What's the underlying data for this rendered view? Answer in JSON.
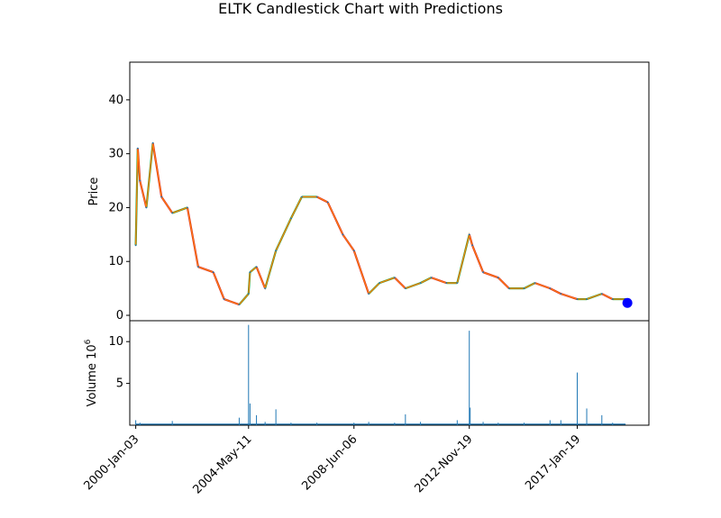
{
  "chart_data": [
    {
      "type": "candlestick",
      "title": "ELTK Candlestick Chart with Predictions",
      "ylabel": "Price",
      "ylim": [
        -1,
        47
      ],
      "yticks": [
        0,
        10,
        20,
        30,
        40
      ],
      "x_tick_labels": [
        "2000-Jan-03",
        "2004-May-11",
        "2008-Jun-06",
        "2012-Nov-19",
        "2017-Jan-19"
      ],
      "colors": {
        "up": "#2ca02c",
        "down": "#d62728",
        "body": "#ff7f0e",
        "wick": "#1f77b4",
        "prediction": "#0000ff"
      },
      "series": [
        {
          "name": "",
          "x": [
            "2000-Jan-03",
            "2000-Feb",
            "2000-Mar",
            "2000-Jun",
            "2000-Sep",
            "2001-Jan",
            "2001-Jun",
            "2002-Jan",
            "2002-Jun",
            "2003-Jan",
            "2003-Jun",
            "2004-Jan",
            "2004-May-11",
            "2004-Jun",
            "2004-Sep",
            "2005-Jan",
            "2005-Jun",
            "2006-Jan",
            "2006-Jun",
            "2007-Jan",
            "2007-Jun",
            "2008-Jan",
            "2008-Jun-06",
            "2009-Jan",
            "2009-Jun",
            "2010-Jan",
            "2010-Jun",
            "2011-Jan",
            "2011-Jun",
            "2012-Jan",
            "2012-Jun",
            "2012-Nov-19",
            "2013-Jan",
            "2013-Jun",
            "2014-Jan",
            "2014-Jun",
            "2015-Jan",
            "2015-Jun",
            "2016-Jan",
            "2016-Jun",
            "2017-Jan-19",
            "2017-Jun",
            "2018-Jan",
            "2018-Jun",
            "2018-Dec"
          ],
          "values": [
            13,
            31,
            25,
            20,
            32,
            22,
            19,
            20,
            9,
            8,
            3,
            2,
            4,
            8,
            9,
            5,
            12,
            18,
            22,
            22,
            21,
            15,
            12,
            4,
            6,
            7,
            5,
            6,
            7,
            6,
            6,
            15,
            13,
            8,
            7,
            5,
            5,
            6,
            5,
            4,
            3,
            3,
            4,
            3,
            3
          ]
        }
      ],
      "prediction": {
        "x": "2018-Dec",
        "value": 2.3
      }
    },
    {
      "type": "bar",
      "ylabel": "Volume  10",
      "ylabel_exponent": "6",
      "ylim": [
        0,
        12.5
      ],
      "yticks": [
        5,
        10
      ],
      "series": [
        {
          "name": "",
          "x": [
            "2000-Jan-03",
            "2000-Mar",
            "2001-Jun",
            "2004-Jan",
            "2004-May-11",
            "2004-Jun",
            "2004-Sep",
            "2005-Jan",
            "2005-Jun",
            "2006-Jan",
            "2007-Jan",
            "2008-Jun-06",
            "2009-Jan",
            "2010-Jan",
            "2010-Jun",
            "2011-Jan",
            "2012-Jun",
            "2012-Nov-19",
            "2012-Dec",
            "2013-Jun",
            "2014-Jan",
            "2015-Jan",
            "2016-Jan",
            "2016-Jun",
            "2017-Jan-19",
            "2017-Jun",
            "2018-Jan",
            "2018-Jun"
          ],
          "values": [
            0.6,
            0.3,
            0.5,
            0.9,
            12.0,
            2.6,
            1.2,
            0.4,
            1.9,
            0.3,
            0.3,
            0.3,
            0.4,
            0.3,
            1.3,
            0.4,
            0.6,
            11.3,
            2.1,
            0.4,
            0.3,
            0.3,
            0.6,
            0.6,
            6.3,
            2.0,
            1.2,
            0.3
          ]
        }
      ]
    }
  ]
}
